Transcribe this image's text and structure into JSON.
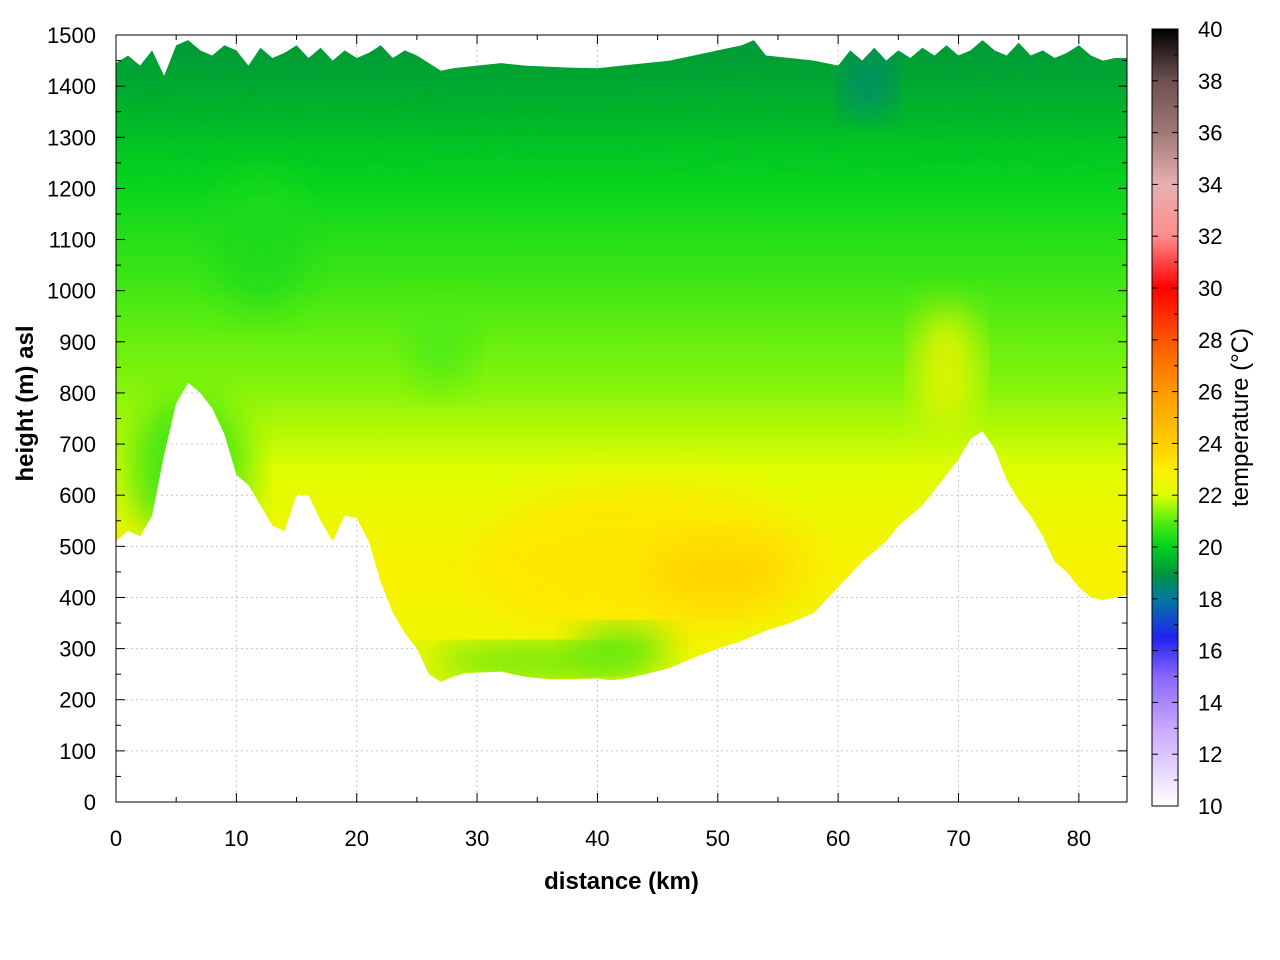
{
  "chart_data": {
    "type": "heatmap",
    "title": "",
    "xlabel": "distance (km)",
    "ylabel": "height (m) asl",
    "colorbar_label": "temperature (°C)",
    "xlim": [
      0,
      84
    ],
    "ylim": [
      0,
      1500
    ],
    "x_ticks": [
      0,
      10,
      20,
      30,
      40,
      50,
      60,
      70,
      80
    ],
    "y_ticks": [
      0,
      100,
      200,
      300,
      400,
      500,
      600,
      700,
      800,
      900,
      1000,
      1100,
      1200,
      1300,
      1400,
      1500
    ],
    "colorbar_range": [
      10,
      40
    ],
    "colorbar_ticks": [
      10,
      12,
      14,
      16,
      18,
      20,
      22,
      24,
      26,
      28,
      30,
      32,
      34,
      36,
      38,
      40
    ],
    "grid": true,
    "colormap": [
      [
        10,
        "#ffffff"
      ],
      [
        13,
        "#c9a8ff"
      ],
      [
        15,
        "#8866ff"
      ],
      [
        16.5,
        "#2222ee"
      ],
      [
        18,
        "#007aa0"
      ],
      [
        19,
        "#00963a"
      ],
      [
        20,
        "#00d21e"
      ],
      [
        21,
        "#55ee11"
      ],
      [
        22,
        "#ddff00"
      ],
      [
        23,
        "#ffee00"
      ],
      [
        24,
        "#ffcc00"
      ],
      [
        26,
        "#ff9900"
      ],
      [
        28,
        "#ff5500"
      ],
      [
        30,
        "#ff0000"
      ],
      [
        32,
        "#ff8c8c"
      ],
      [
        34,
        "#e8b0b0"
      ],
      [
        36,
        "#a07878"
      ],
      [
        38,
        "#6e5050"
      ],
      [
        40,
        "#000000"
      ]
    ],
    "terrain_profile": {
      "x": [
        0,
        1,
        2,
        3,
        4,
        5,
        6,
        7,
        8,
        9,
        10,
        11,
        12,
        13,
        14,
        15,
        16,
        17,
        18,
        19,
        20,
        21,
        22,
        23,
        24,
        25,
        26,
        27,
        28,
        29,
        30,
        32,
        34,
        36,
        38,
        40,
        41,
        42,
        44,
        46,
        48,
        50,
        52,
        54,
        56,
        58,
        60,
        62,
        64,
        65,
        66,
        67,
        68,
        69,
        70,
        71,
        72,
        73,
        74,
        75,
        76,
        77,
        78,
        79,
        80,
        81,
        82,
        83,
        84
      ],
      "height": [
        510,
        530,
        520,
        560,
        680,
        780,
        820,
        800,
        770,
        720,
        640,
        620,
        580,
        540,
        530,
        600,
        600,
        550,
        510,
        560,
        555,
        510,
        430,
        370,
        330,
        300,
        250,
        235,
        245,
        252,
        253,
        255,
        245,
        240,
        240,
        242,
        238,
        240,
        250,
        262,
        282,
        300,
        315,
        335,
        350,
        370,
        420,
        470,
        510,
        540,
        560,
        580,
        610,
        640,
        670,
        710,
        725,
        690,
        630,
        590,
        560,
        520,
        470,
        450,
        420,
        400,
        395,
        400,
        405
      ]
    },
    "top_boundary": {
      "x": [
        0,
        1,
        2,
        3,
        4,
        5,
        6,
        7,
        8,
        9,
        10,
        11,
        12,
        13,
        14,
        15,
        16,
        17,
        18,
        19,
        20,
        21,
        22,
        23,
        24,
        25,
        26,
        27,
        28,
        30,
        32,
        34,
        36,
        38,
        40,
        42,
        44,
        46,
        48,
        50,
        52,
        53,
        54,
        56,
        58,
        60,
        61,
        62,
        63,
        64,
        65,
        66,
        67,
        68,
        69,
        70,
        71,
        72,
        73,
        74,
        75,
        76,
        77,
        78,
        79,
        80,
        81,
        82,
        83,
        84
      ],
      "height": [
        1445,
        1460,
        1440,
        1470,
        1420,
        1480,
        1490,
        1470,
        1460,
        1480,
        1470,
        1440,
        1475,
        1455,
        1465,
        1480,
        1455,
        1475,
        1450,
        1470,
        1455,
        1465,
        1480,
        1455,
        1470,
        1460,
        1445,
        1430,
        1435,
        1440,
        1445,
        1440,
        1438,
        1436,
        1435,
        1440,
        1445,
        1450,
        1460,
        1470,
        1480,
        1490,
        1460,
        1455,
        1450,
        1440,
        1470,
        1450,
        1475,
        1450,
        1470,
        1455,
        1475,
        1460,
        1480,
        1460,
        1470,
        1490,
        1470,
        1460,
        1485,
        1460,
        1470,
        1455,
        1465,
        1480,
        1460,
        1450,
        1455,
        1455
      ]
    },
    "temperature_field_summary": [
      {
        "region": "upper layer 1200-1500 m",
        "temperature_range": [
          18,
          20
        ]
      },
      {
        "region": "mid layer 800-1200 m",
        "temperature_range": [
          20,
          21.5
        ]
      },
      {
        "region": "valley core 30-58 km, 300-650 m",
        "temperature_range": [
          22,
          23.5
        ]
      },
      {
        "region": "warm band near 68-70 km, 700-950 m",
        "temperature_range": [
          22,
          23
        ]
      },
      {
        "region": "valley floor 27-45 km",
        "temperature_range": [
          20,
          21
        ]
      },
      {
        "region": "upper band near 61-64 km, 1380-1450 m",
        "temperature_range": [
          18,
          18.5
        ]
      }
    ]
  }
}
